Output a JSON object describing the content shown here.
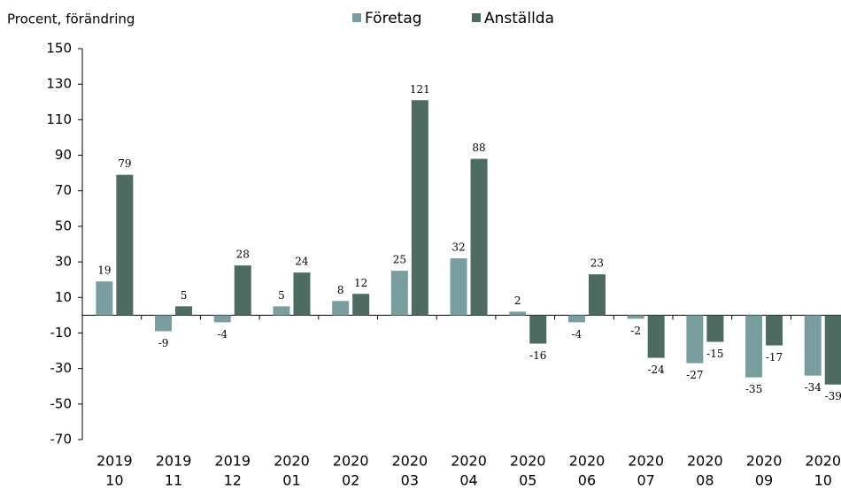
{
  "chart_data": {
    "type": "bar",
    "y_label": "Procent, förändring",
    "categories": [
      [
        "2019",
        "10"
      ],
      [
        "2019",
        "11"
      ],
      [
        "2019",
        "12"
      ],
      [
        "2020",
        "01"
      ],
      [
        "2020",
        "02"
      ],
      [
        "2020",
        "03"
      ],
      [
        "2020",
        "04"
      ],
      [
        "2020",
        "05"
      ],
      [
        "2020",
        "06"
      ],
      [
        "2020",
        "07"
      ],
      [
        "2020",
        "08"
      ],
      [
        "2020",
        "09"
      ],
      [
        "2020",
        "10"
      ]
    ],
    "series": [
      {
        "name": "Företag",
        "color": "#7a9e9f",
        "values": [
          19,
          -9,
          -4,
          5,
          8,
          25,
          32,
          2,
          -4,
          -2,
          -27,
          -35,
          -34
        ]
      },
      {
        "name": "Anställda",
        "color": "#4d6b61",
        "values": [
          79,
          5,
          28,
          24,
          12,
          121,
          88,
          -16,
          23,
          -24,
          -15,
          -17,
          -39
        ]
      }
    ],
    "ylim": [
      -70,
      150
    ],
    "yticks": [
      -70,
      -50,
      -30,
      -10,
      10,
      30,
      50,
      70,
      90,
      110,
      130,
      150
    ],
    "grid": false,
    "legend": "top"
  }
}
